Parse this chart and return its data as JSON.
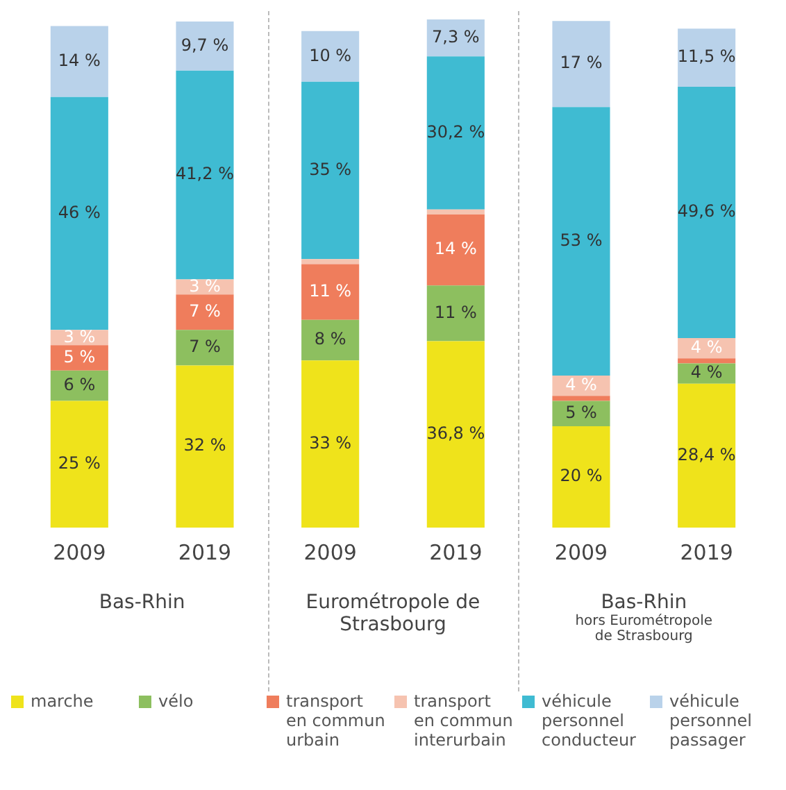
{
  "chart_data": {
    "type": "bar",
    "stacked": true,
    "categories": [
      "2009",
      "2019",
      "2009",
      "2019",
      "2009",
      "2019"
    ],
    "series": [
      {
        "name": "marche",
        "color": "#efe31b",
        "values": [
          25,
          32,
          33,
          36.8,
          20,
          28.4
        ],
        "value_labels": [
          "25 %",
          "32 %",
          "33 %",
          "36,8 %",
          "20 %",
          "28,4 %"
        ]
      },
      {
        "name": "vélo",
        "color": "#8dbf5f",
        "values": [
          6,
          7,
          8,
          11,
          5,
          4
        ],
        "value_labels": [
          "6 %",
          "7 %",
          "8 %",
          "11 %",
          "5 %",
          "4 %"
        ]
      },
      {
        "name": "transport en commun urbain",
        "color": "#ef7d5c",
        "values": [
          5,
          7,
          11,
          14,
          1,
          1
        ],
        "value_labels": [
          "5 %",
          "7 %",
          "11 %",
          "14 %",
          null,
          null
        ]
      },
      {
        "name": "transport en commun interurbain",
        "color": "#f6c3b0",
        "values": [
          3,
          3,
          1,
          1,
          4,
          4
        ],
        "value_labels": [
          "3 %",
          "3 %",
          null,
          null,
          "4 %",
          "4 %"
        ]
      },
      {
        "name": "véhicule personnel conducteur",
        "color": "#3fbbd2",
        "values": [
          46,
          41.2,
          35,
          30.2,
          53,
          49.6
        ],
        "value_labels": [
          "46 %",
          "41,2 %",
          "35 %",
          "30,2 %",
          "53 %",
          "49,6 %"
        ]
      },
      {
        "name": "véhicule personnel passager",
        "color": "#b9d2ea",
        "values": [
          14,
          9.7,
          10,
          7.3,
          17,
          11.5
        ],
        "value_labels": [
          "14 %",
          "9,7 %",
          "10 %",
          "7,3 %",
          "17 %",
          "11,5 %"
        ]
      }
    ],
    "annotations": [
      "Bas-Rhin",
      "Eurométropole de Strasbourg",
      "Bas-Rhin hors Eurométropole de Strasbourg"
    ],
    "legend": "bottom",
    "grid": false
  }
}
